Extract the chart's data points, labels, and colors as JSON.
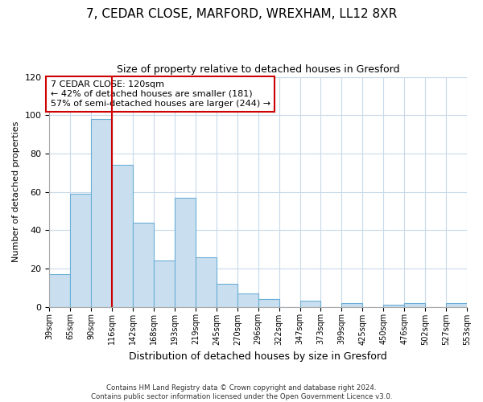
{
  "title": "7, CEDAR CLOSE, MARFORD, WREXHAM, LL12 8XR",
  "subtitle": "Size of property relative to detached houses in Gresford",
  "xlabel": "Distribution of detached houses by size in Gresford",
  "ylabel": "Number of detached properties",
  "bar_labels": [
    "39sqm",
    "65sqm",
    "90sqm",
    "116sqm",
    "142sqm",
    "168sqm",
    "193sqm",
    "219sqm",
    "245sqm",
    "270sqm",
    "296sqm",
    "322sqm",
    "347sqm",
    "373sqm",
    "399sqm",
    "425sqm",
    "450sqm",
    "476sqm",
    "502sqm",
    "527sqm",
    "553sqm"
  ],
  "bar_values": [
    17,
    59,
    98,
    74,
    44,
    24,
    57,
    26,
    12,
    7,
    4,
    0,
    3,
    0,
    2,
    0,
    1,
    2,
    0,
    2
  ],
  "bar_color": "#c9dff0",
  "bar_edge_color": "#6aaed6",
  "vline_x_index": 3,
  "vline_color": "#cc0000",
  "annotation_text": "7 CEDAR CLOSE: 120sqm\n← 42% of detached houses are smaller (181)\n57% of semi-detached houses are larger (244) →",
  "annotation_box_edge": "#cc0000",
  "ylim": [
    0,
    120
  ],
  "yticks": [
    0,
    20,
    40,
    60,
    80,
    100,
    120
  ],
  "footer_line1": "Contains HM Land Registry data © Crown copyright and database right 2024.",
  "footer_line2": "Contains public sector information licensed under the Open Government Licence v3.0.",
  "bg_color": "#ffffff",
  "grid_color": "#c8daea"
}
